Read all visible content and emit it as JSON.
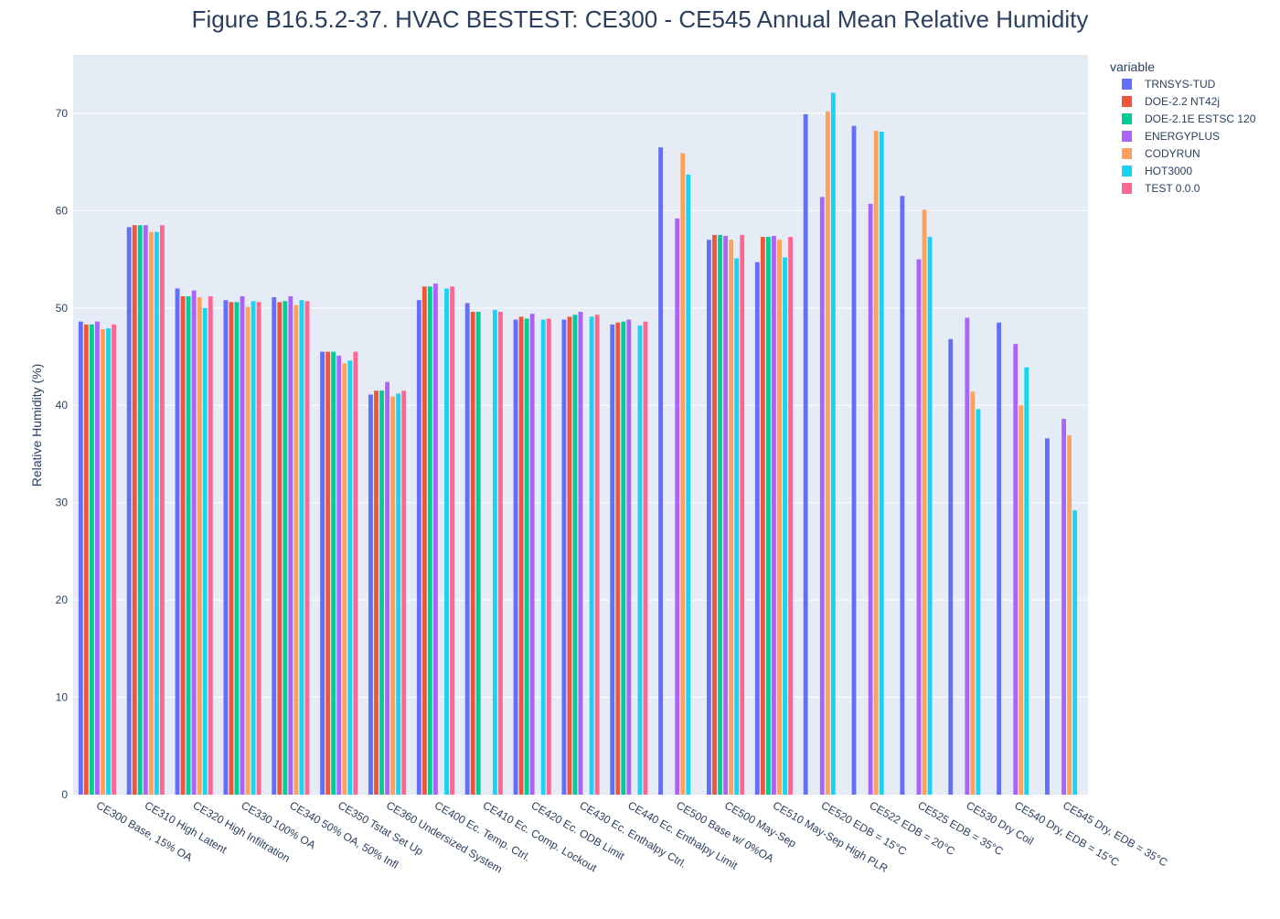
{
  "chart_data": {
    "type": "bar",
    "title": "Figure B16.5.2-37. HVAC BESTEST: CE300 - CE545 Annual Mean Relative Humidity",
    "xlabel": "",
    "ylabel": "Relative Humidity (%)",
    "ylim": [
      0,
      76
    ],
    "yticks": [
      0,
      10,
      20,
      30,
      40,
      50,
      60,
      70
    ],
    "grid": true,
    "legend_title": "variable",
    "legend_position": "top-right",
    "categories": [
      "CE300 Base, 15% OA",
      "CE310 High Latent",
      "CE320 High Infiltration",
      "CE330 100% OA",
      "CE340 50% OA, 50% Infl",
      "CE350 Tstat Set Up",
      "CE360 Undersized System",
      "CE400 Ec. Temp. Ctrl.",
      "CE410 Ec. Comp. Lockout",
      "CE420 Ec. ODB Limit",
      "CE430 Ec. Enthalpy Ctrl.",
      "CE440 Ec. Enthalpy Limit",
      "CE500 Base w/ 0%OA",
      "CE500 May-Sep",
      "CE510 May-Sep High PLR",
      "CE520 EDB = 15°C",
      "CE522 EDB = 20°C",
      "CE525 EDB = 35°C",
      "CE530 Dry Coil",
      "CE540 Dry, EDB = 15°C",
      "CE545 Dry, EDB = 35°C"
    ],
    "series": [
      {
        "name": "TRNSYS-TUD",
        "color": "#636efa",
        "values": [
          48.6,
          58.3,
          52.0,
          50.8,
          51.1,
          45.5,
          41.1,
          50.8,
          50.5,
          48.8,
          48.8,
          48.3,
          66.5,
          57.0,
          54.7,
          69.9,
          68.7,
          61.5,
          46.8,
          48.5,
          36.6
        ]
      },
      {
        "name": "DOE-2.2 NT42j",
        "color": "#ef553b",
        "values": [
          48.3,
          58.5,
          51.2,
          50.6,
          50.6,
          45.5,
          41.5,
          52.2,
          49.6,
          49.1,
          49.1,
          48.5,
          null,
          57.5,
          57.3,
          null,
          null,
          null,
          null,
          null,
          null
        ]
      },
      {
        "name": "DOE-2.1E ESTSC 120",
        "color": "#00cc96",
        "values": [
          48.3,
          58.5,
          51.2,
          50.6,
          50.7,
          45.5,
          41.5,
          52.2,
          49.6,
          48.9,
          49.3,
          48.6,
          null,
          57.5,
          57.3,
          null,
          null,
          null,
          null,
          null,
          null
        ]
      },
      {
        "name": "ENERGYPLUS",
        "color": "#ab63fa",
        "values": [
          48.6,
          58.5,
          51.8,
          51.2,
          51.2,
          45.1,
          42.4,
          52.5,
          null,
          49.4,
          49.6,
          48.8,
          59.2,
          57.4,
          57.4,
          61.4,
          60.7,
          55.0,
          49.0,
          46.3,
          38.6
        ]
      },
      {
        "name": "CODYRUN",
        "color": "#ffa15a",
        "values": [
          47.8,
          57.8,
          51.1,
          50.1,
          50.3,
          44.3,
          40.9,
          null,
          null,
          null,
          null,
          null,
          65.9,
          57.0,
          57.0,
          70.2,
          68.2,
          60.1,
          41.4,
          40.0,
          36.9
        ]
      },
      {
        "name": "HOT3000",
        "color": "#19d3f3",
        "values": [
          47.9,
          57.8,
          50.0,
          50.7,
          50.8,
          44.6,
          41.2,
          52.0,
          49.8,
          48.8,
          49.1,
          48.2,
          63.7,
          55.1,
          55.2,
          72.1,
          68.1,
          57.3,
          39.6,
          43.9,
          29.2
        ]
      },
      {
        "name": "TEST 0.0.0",
        "color": "#ff6692",
        "values": [
          48.3,
          58.5,
          51.2,
          50.6,
          50.7,
          45.5,
          41.5,
          52.2,
          49.6,
          48.9,
          49.3,
          48.6,
          null,
          57.5,
          57.3,
          null,
          null,
          null,
          null,
          null,
          null
        ]
      }
    ]
  }
}
